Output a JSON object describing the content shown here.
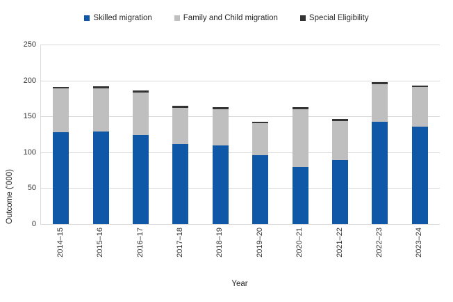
{
  "chart_data": {
    "type": "bar",
    "stacked": true,
    "title": "",
    "xlabel": "Year",
    "ylabel": "Outcome ('000)",
    "ylim": [
      0,
      250
    ],
    "yticks": [
      0,
      50,
      100,
      150,
      200,
      250
    ],
    "grid": true,
    "legend_position": "top",
    "categories": [
      "2014–15",
      "2015–16",
      "2016–17",
      "2017–18",
      "2018–19",
      "2019–20",
      "2020–21",
      "2021–22",
      "2022–23",
      "2023–24"
    ],
    "series": [
      {
        "name": "Skilled migration",
        "color": "#0F58A8",
        "values": [
          127.8,
          128.6,
          123.6,
          111.1,
          109.7,
          95.8,
          79.6,
          89.1,
          142.3,
          136.0
        ]
      },
      {
        "name": "Family and Child migration",
        "color": "#BFBFBF",
        "values": [
          61.1,
          60.9,
          59.8,
          51.1,
          50.5,
          44.4,
          80.4,
          54.4,
          52.7,
          54.5
        ]
      },
      {
        "name": "Special Eligibility",
        "color": "#333333",
        "values": [
          0.2,
          0.3,
          0.2,
          0.2,
          0.1,
          0.1,
          0.1,
          0.1,
          0.3,
          0.3
        ]
      }
    ],
    "colors": {
      "gridline": "#D9D9D9",
      "axis_text": "#333333",
      "title_text": "#262626"
    }
  }
}
